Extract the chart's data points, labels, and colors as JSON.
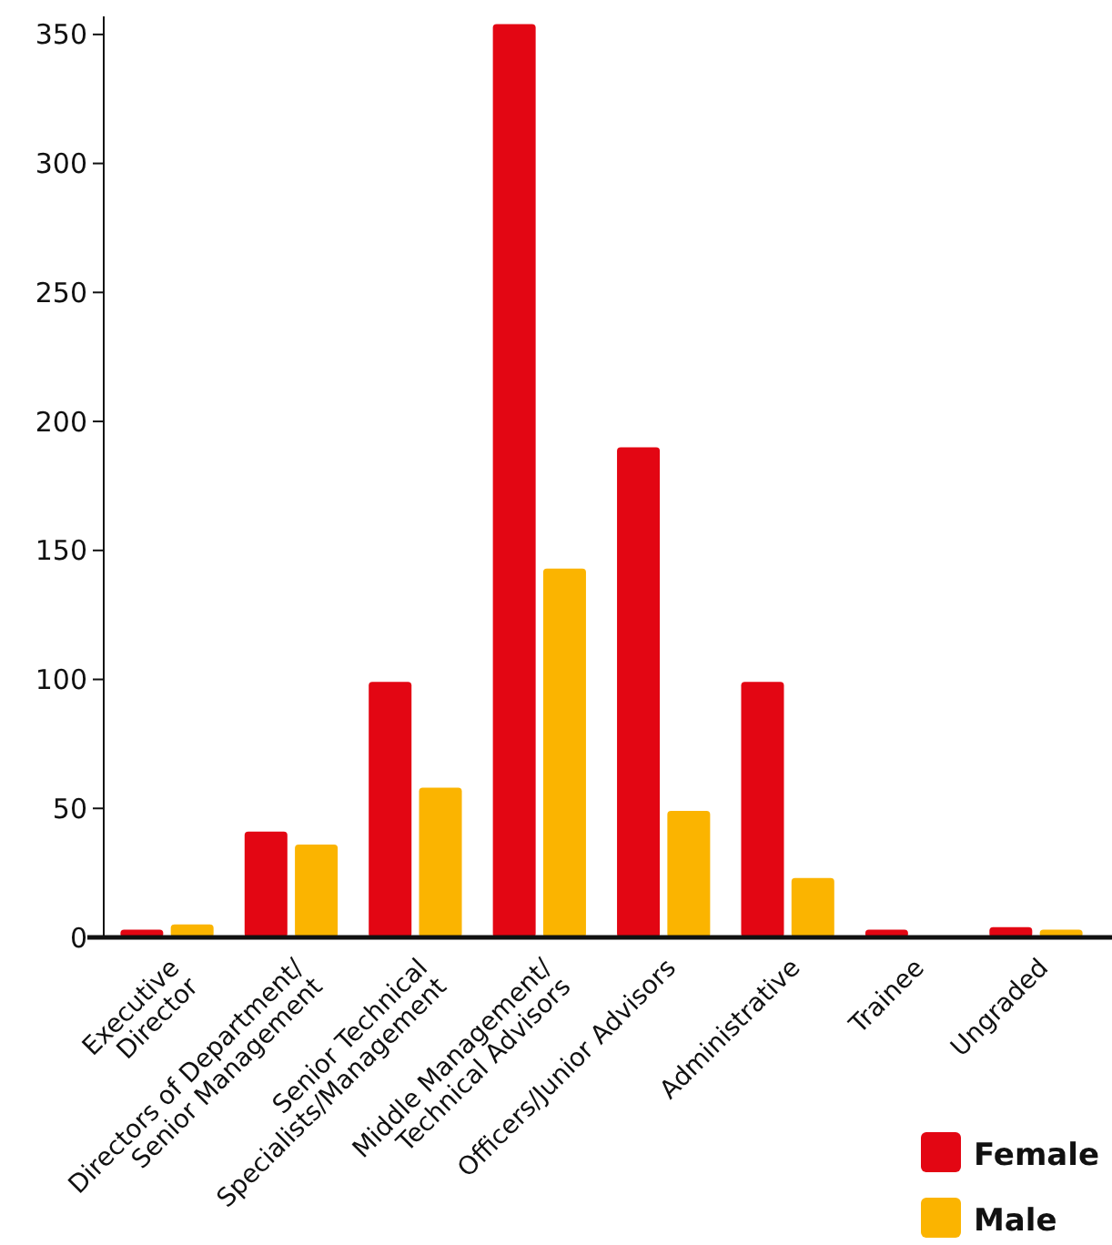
{
  "chart_data": {
    "type": "bar",
    "categories": [
      "Executive\nDirector",
      "Directors of Department/\nSenior Management",
      "Senior Technical\nSpecialists/Management",
      "Middle Management/\nTechnical Advisors",
      "Officers/Junior Advisors",
      "Administrative",
      "Trainee",
      "Ungraded"
    ],
    "series": [
      {
        "name": "Female",
        "color": "#e30613",
        "values": [
          3,
          41,
          99,
          354,
          190,
          99,
          3,
          4
        ]
      },
      {
        "name": "Male",
        "color": "#fbb400",
        "values": [
          5,
          36,
          58,
          143,
          49,
          23,
          0,
          3
        ]
      }
    ],
    "ylim": [
      0,
      357
    ],
    "yticks": [
      0,
      50,
      100,
      150,
      200,
      250,
      300,
      350
    ],
    "grid": false,
    "legend": "bottom right"
  }
}
